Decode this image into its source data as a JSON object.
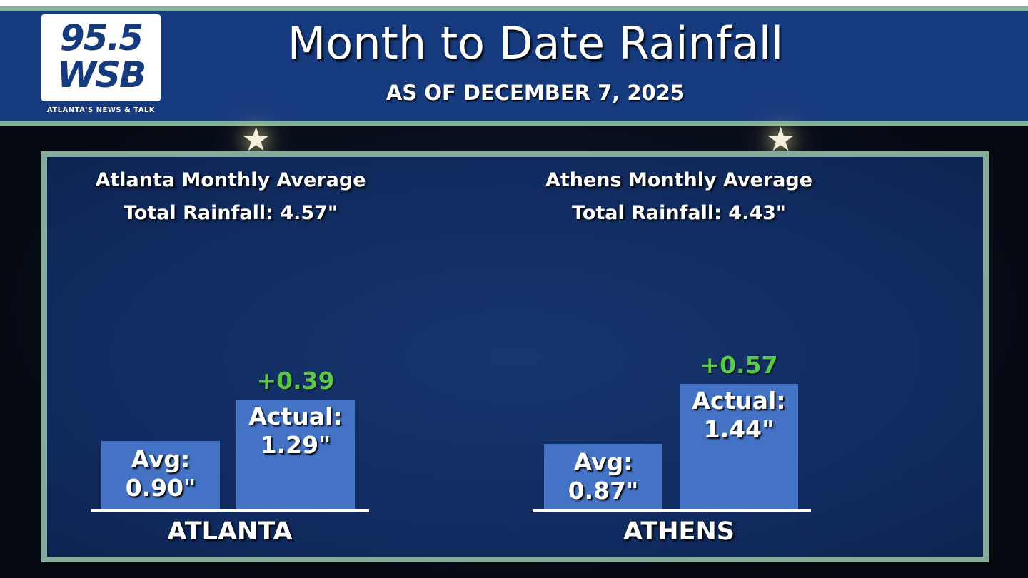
{
  "header": {
    "title": "Month to Date Rainfall",
    "subtitle": "AS OF DECEMBER 7, 2025",
    "logo": {
      "frequency": "95.5",
      "call_sign": "WSB",
      "tagline": "ATLANTA'S NEWS & TALK"
    }
  },
  "colors": {
    "bar": "#4472c4",
    "positive_diff": "#5ac84a",
    "header_bg": "#163a7e",
    "border": "#86ab9a"
  },
  "chart_data": {
    "type": "bar",
    "title": "Month to Date Rainfall",
    "subtitle": "AS OF DECEMBER 7, 2025",
    "unit": "inches",
    "groups": [
      {
        "category": "ATLANTA",
        "heading_line1": "Atlanta Monthly Average",
        "heading_line2": "Total Rainfall: 4.57\"",
        "monthly_total": 4.57,
        "bars": [
          {
            "label_line1": "Avg:",
            "label_line2": "0.90\"",
            "value": 0.9
          },
          {
            "label_line1": "Actual:",
            "label_line2": "1.29\"",
            "value": 1.29
          }
        ],
        "difference": "+0.39"
      },
      {
        "category": "ATHENS",
        "heading_line1": "Athens Monthly Average",
        "heading_line2": "Total Rainfall: 4.43\"",
        "monthly_total": 4.43,
        "bars": [
          {
            "label_line1": "Avg:",
            "label_line2": "0.87\"",
            "value": 0.87
          },
          {
            "label_line1": "Actual:",
            "label_line2": "1.44\"",
            "value": 1.44
          }
        ],
        "difference": "+0.57"
      }
    ]
  }
}
